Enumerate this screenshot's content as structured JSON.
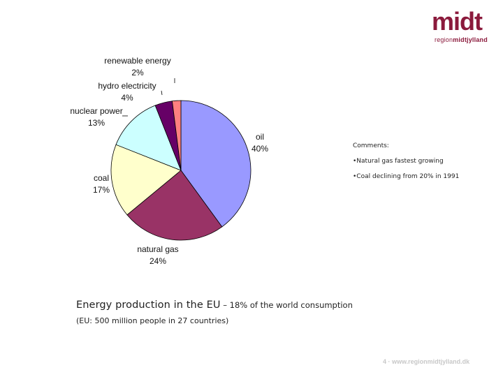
{
  "logo": {
    "word": "midt",
    "sub_prefix": "region",
    "sub_bold": "midtjylland",
    "color": "#8b1a3c"
  },
  "chart_data": {
    "type": "pie",
    "slices": [
      {
        "label": "oil",
        "value": 40,
        "pct_label": "40%",
        "color": "#9999ff"
      },
      {
        "label": "natural gas",
        "value": 24,
        "pct_label": "24%",
        "color": "#993366"
      },
      {
        "label": "coal",
        "value": 17,
        "pct_label": "17%",
        "color": "#ffffcc"
      },
      {
        "label": "nuclear power",
        "value": 13,
        "pct_label": "13%",
        "color": "#ccffff"
      },
      {
        "label": "hydro electricity",
        "value": 4,
        "pct_label": "4%",
        "color": "#660066"
      },
      {
        "label": "renewable energy",
        "value": 2,
        "pct_label": "2%",
        "color": "#ff8080"
      }
    ]
  },
  "comments": {
    "title": "Comments:",
    "items": [
      "•Natural gas fastest growing",
      "•Coal declining from 20% in 1991"
    ]
  },
  "headline": {
    "main": "Energy production in the EU",
    "rest": " – 18% of the world consumption"
  },
  "subline": "(EU: 500 million people in 27 countries)",
  "footer": "4  ·  www.regionmidtjylland.dk"
}
